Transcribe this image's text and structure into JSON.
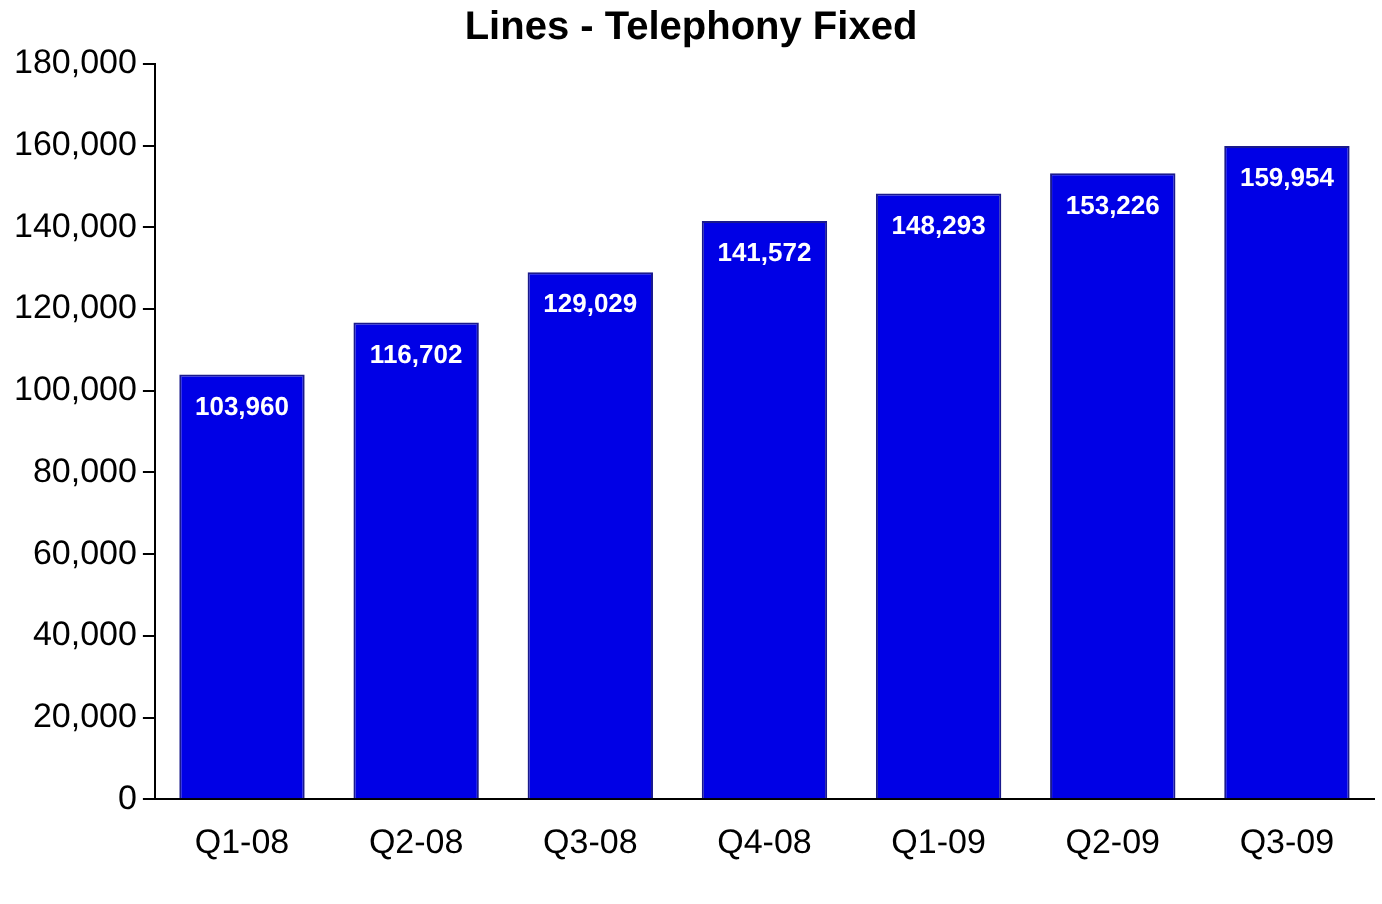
{
  "chart_data": {
    "type": "bar",
    "title": "Lines - Telephony Fixed",
    "categories": [
      "Q1-08",
      "Q2-08",
      "Q3-08",
      "Q4-08",
      "Q1-09",
      "Q2-09",
      "Q3-09"
    ],
    "values": [
      103960,
      116702,
      129029,
      141572,
      148293,
      153226,
      159954
    ],
    "value_labels": [
      "103,960",
      "116,702",
      "129,029",
      "141,572",
      "148,293",
      "153,226",
      "159,954"
    ],
    "color": "#0000e6",
    "ylim": [
      0,
      180000
    ],
    "yticks": [
      {
        "value": 0,
        "label": "0"
      },
      {
        "value": 20000,
        "label": "20,000"
      },
      {
        "value": 40000,
        "label": "40,000"
      },
      {
        "value": 60000,
        "label": "60,000"
      },
      {
        "value": 80000,
        "label": "80,000"
      },
      {
        "value": 100000,
        "label": "100,000"
      },
      {
        "value": 120000,
        "label": "120,000"
      },
      {
        "value": 140000,
        "label": "140,000"
      },
      {
        "value": 160000,
        "label": "160,000"
      },
      {
        "value": 180000,
        "label": "180,000"
      }
    ],
    "grid": false,
    "legend": false
  }
}
